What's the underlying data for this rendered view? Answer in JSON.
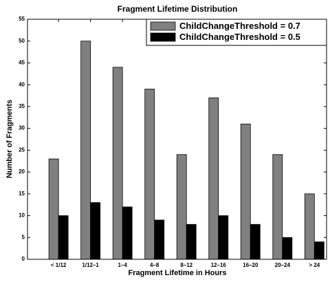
{
  "chart_data": {
    "type": "bar",
    "title": "Fragment Lifetime Distribution",
    "x_label": "Fragment Lifetime in Hours",
    "y_label": "Number of Fragments",
    "categories": [
      "< 1/12",
      "1/12–1",
      "1–4",
      "4–8",
      "8–12",
      "12–16",
      "16–20",
      "20–24",
      "> 24"
    ],
    "series": [
      {
        "name": "ChildChangeThreshold = 0.7",
        "color": "#808080",
        "values": [
          23,
          50,
          44,
          39,
          24,
          37,
          31,
          24,
          15
        ]
      },
      {
        "name": "ChildChangeThreshold = 0.5",
        "color": "#000000",
        "values": [
          10,
          13,
          12,
          9,
          8,
          10,
          8,
          5,
          4
        ]
      }
    ],
    "ylim": [
      0,
      55
    ],
    "yticks": [
      0,
      5,
      10,
      15,
      20,
      25,
      30,
      35,
      40,
      45,
      50,
      55
    ],
    "legend": "upper right"
  }
}
